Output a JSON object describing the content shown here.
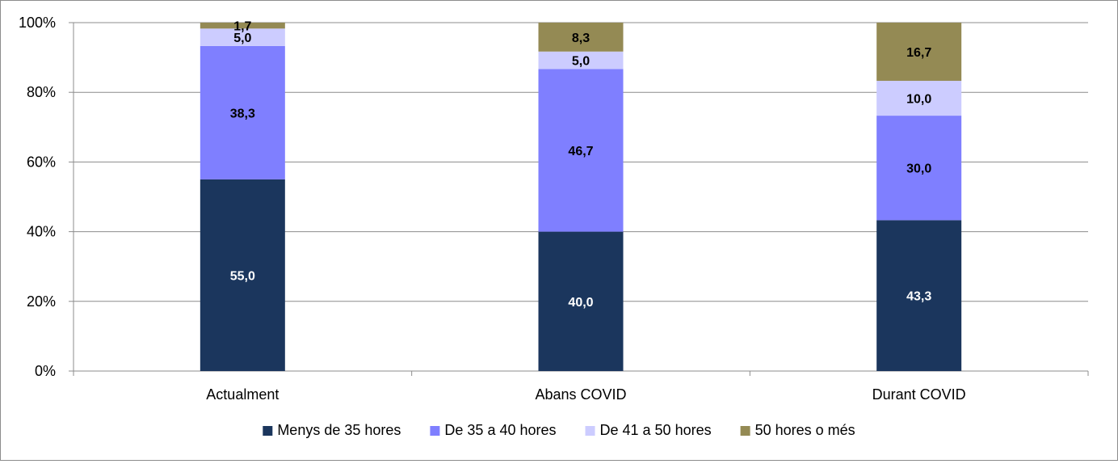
{
  "chart_data": {
    "type": "bar",
    "stacked": "percent",
    "categories": [
      "Actualment",
      "Abans COVID",
      "Durant COVID"
    ],
    "series": [
      {
        "name": "Menys de 35 hores",
        "color": "#1b365d",
        "label_color": "#ffffff",
        "values": [
          55.0,
          40.0,
          43.3
        ],
        "labels": [
          "55,0",
          "40,0",
          "43,3"
        ]
      },
      {
        "name": "De 35 a 40 hores",
        "color": "#7f7fff",
        "label_color": "#000000",
        "values": [
          38.3,
          46.7,
          30.0
        ],
        "labels": [
          "38,3",
          "46,7",
          "30,0"
        ]
      },
      {
        "name": "De 41 a 50 hores",
        "color": "#ccccff",
        "label_color": "#000000",
        "values": [
          5.0,
          5.0,
          10.0
        ],
        "labels": [
          "5,0",
          "5,0",
          "10,0"
        ]
      },
      {
        "name": "50 hores o més",
        "color": "#948a54",
        "label_color": "#000000",
        "values": [
          1.7,
          8.3,
          16.7
        ],
        "labels": [
          "1,7",
          "8,3",
          "16,7"
        ]
      }
    ],
    "yticks": [
      "0%",
      "20%",
      "40%",
      "60%",
      "80%",
      "100%"
    ],
    "ylim": [
      0,
      100
    ],
    "grid": true,
    "legend_position": "bottom",
    "title": "",
    "xlabel": "",
    "ylabel": ""
  }
}
